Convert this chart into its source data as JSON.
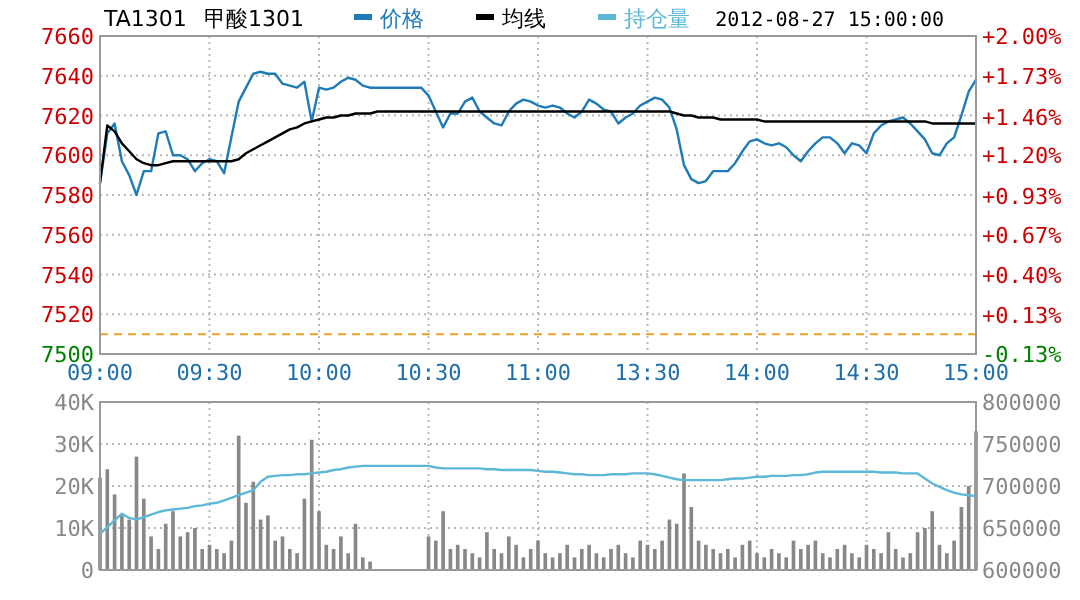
{
  "chart_data": [
    {
      "type": "line",
      "title": "TA1301",
      "subtitle": "甲酸1301",
      "annotations": [
        "2012-08-27 15:00:00"
      ],
      "categories": [
        "09:00",
        null,
        null,
        null,
        null,
        null,
        null,
        null,
        null,
        null,
        null,
        null,
        null,
        null,
        null,
        "09:30",
        null,
        null,
        null,
        null,
        null,
        null,
        null,
        null,
        null,
        null,
        null,
        null,
        null,
        null,
        "10:00",
        null,
        null,
        null,
        null,
        null,
        null,
        null,
        null,
        null,
        null,
        null,
        null,
        null,
        null,
        "10:30",
        null,
        null,
        null,
        null,
        null,
        null,
        null,
        null,
        null,
        null,
        null,
        null,
        null,
        null,
        "11:00",
        null,
        null,
        null,
        null,
        null,
        null,
        null,
        null,
        null,
        null,
        null,
        null,
        null,
        null,
        "13:30",
        null,
        null,
        null,
        null,
        null,
        null,
        null,
        null,
        null,
        null,
        null,
        null,
        null,
        null,
        "14:00",
        null,
        null,
        null,
        null,
        null,
        null,
        null,
        null,
        null,
        null,
        null,
        null,
        null,
        null,
        "14:30",
        null,
        null,
        null,
        null,
        null,
        null,
        null,
        null,
        null,
        null,
        null,
        null,
        null,
        null,
        "15:00"
      ],
      "ylim": [
        7500,
        7660
      ],
      "yticks": [
        7500,
        7520,
        7540,
        7560,
        7580,
        7600,
        7620,
        7640,
        7660
      ],
      "y2lim": [
        -0.13,
        2.0
      ],
      "y2ticks": [
        {
          "value": -0.13,
          "label": "-0.13%"
        },
        {
          "value": 0.13,
          "label": "+0.13%"
        },
        {
          "value": 0.4,
          "label": "+0.40%"
        },
        {
          "value": 0.67,
          "label": "+0.67%"
        },
        {
          "value": 0.93,
          "label": "+0.93%"
        },
        {
          "value": 1.2,
          "label": "+1.20%"
        },
        {
          "value": 1.46,
          "label": "+1.46%"
        },
        {
          "value": 1.73,
          "label": "+1.73%"
        },
        {
          "value": 2.0,
          "label": "+2.00%"
        }
      ],
      "ref_lines": [
        {
          "axis": "y",
          "value": 7510,
          "color": "#f0a030",
          "line_style": "dashed"
        }
      ],
      "grid": true,
      "legend": "top",
      "series": [
        {
          "name": "价格",
          "color": "#1f7bb6",
          "values": [
            7586,
            7611,
            7616,
            7597,
            7590,
            7580,
            7592,
            7592,
            7611,
            7612,
            7600,
            7600,
            7598,
            7592,
            7596,
            7598,
            7597,
            7591,
            7609,
            7627,
            7634,
            7641,
            7642,
            7641,
            7641,
            7636,
            7635,
            7634,
            7637,
            7617,
            7634,
            7633,
            7634,
            7637,
            7639,
            7638,
            7635,
            7634,
            7634,
            7634,
            7634,
            7634,
            7634,
            7634,
            7634,
            7630,
            7622,
            7614,
            7621,
            7621,
            7627,
            7629,
            7622,
            7619,
            7616,
            7615,
            7622,
            7626,
            7628,
            7627,
            7625,
            7624,
            7625,
            7624,
            7621,
            7619,
            7622,
            7628,
            7626,
            7623,
            7622,
            7616,
            7619,
            7621,
            7625,
            7627,
            7629,
            7628,
            7624,
            7613,
            7595,
            7588,
            7586,
            7587,
            7592,
            7592,
            7592,
            7596,
            7602,
            7607,
            7608,
            7606,
            7605,
            7606,
            7604,
            7600,
            7597,
            7602,
            7606,
            7609,
            7609,
            7606,
            7601,
            7606,
            7605,
            7601,
            7611,
            7615,
            7617,
            7618,
            7619,
            7616,
            7612,
            7608,
            7601,
            7600,
            7606,
            7609,
            7620,
            7632,
            7638
          ]
        },
        {
          "name": "均线",
          "color": "#000000",
          "values": [
            7586,
            7615,
            7612,
            7606,
            7602,
            7598,
            7596,
            7595,
            7595,
            7596,
            7597,
            7597,
            7597,
            7597,
            7597,
            7597,
            7597,
            7597,
            7597,
            7598,
            7601,
            7603,
            7605,
            7607,
            7609,
            7611,
            7613,
            7614,
            7616,
            7617,
            7618,
            7619,
            7619,
            7620,
            7620,
            7621,
            7621,
            7621,
            7622,
            7622,
            7622,
            7622,
            7622,
            7622,
            7622,
            7622,
            7622,
            7622,
            7622,
            7622,
            7622,
            7622,
            7622,
            7622,
            7622,
            7622,
            7622,
            7622,
            7622,
            7622,
            7622,
            7622,
            7622,
            7622,
            7622,
            7622,
            7622,
            7622,
            7622,
            7622,
            7622,
            7622,
            7622,
            7622,
            7622,
            7622,
            7622,
            7622,
            7622,
            7621,
            7620,
            7620,
            7619,
            7619,
            7619,
            7618,
            7618,
            7618,
            7618,
            7618,
            7618,
            7617,
            7617,
            7617,
            7617,
            7617,
            7617,
            7617,
            7617,
            7617,
            7617,
            7617,
            7617,
            7617,
            7617,
            7617,
            7617,
            7617,
            7617,
            7617,
            7617,
            7617,
            7617,
            7617,
            7616,
            7616,
            7616,
            7616,
            7616,
            7616,
            7616
          ]
        }
      ]
    },
    {
      "type": "bar",
      "categories": [
        null,
        null,
        null,
        null,
        null,
        null,
        null,
        null,
        null,
        null,
        null,
        null,
        null,
        null,
        null,
        null,
        null,
        null,
        null,
        null,
        null,
        null,
        null,
        null,
        null,
        null,
        null,
        null,
        null,
        null,
        null,
        null,
        null,
        null,
        null,
        null,
        null,
        null,
        null,
        null,
        null,
        null,
        null,
        null,
        null,
        null,
        null,
        null,
        null,
        null,
        null,
        null,
        null,
        null,
        null,
        null,
        null,
        null,
        null,
        null,
        null,
        null,
        null,
        null,
        null,
        null,
        null,
        null,
        null,
        null,
        null,
        null,
        null,
        null,
        null,
        null,
        null,
        null,
        null,
        null,
        null,
        null,
        null,
        null,
        null,
        null,
        null,
        null,
        null,
        null,
        null,
        null,
        null,
        null,
        null,
        null,
        null,
        null,
        null,
        null,
        null,
        null,
        null,
        null,
        null,
        null,
        null,
        null,
        null,
        null,
        null,
        null,
        null,
        null,
        null,
        null,
        null,
        null,
        null,
        null,
        null
      ],
      "ylim": [
        0,
        40000
      ],
      "yticks": [
        {
          "value": 0,
          "label": "0"
        },
        {
          "value": 10000,
          "label": "10K"
        },
        {
          "value": 20000,
          "label": "20K"
        },
        {
          "value": 30000,
          "label": "30K"
        },
        {
          "value": 40000,
          "label": "40K"
        }
      ],
      "y2lim": [
        600000,
        800000
      ],
      "y2ticks": [
        600000,
        650000,
        700000,
        750000,
        800000
      ],
      "grid": true,
      "tick_labels": "y",
      "legend": "top",
      "series": [
        {
          "color": "#888888",
          "values": [
            22000,
            24000,
            18000,
            13000,
            12000,
            27000,
            17000,
            8000,
            5000,
            11000,
            14000,
            8000,
            9000,
            10000,
            5000,
            6000,
            5000,
            4000,
            7000,
            32000,
            16000,
            21000,
            12000,
            13000,
            7000,
            8000,
            5000,
            4000,
            17000,
            31000,
            14000,
            6000,
            5000,
            8000,
            4000,
            11000,
            3000,
            2000,
            null,
            null,
            null,
            null,
            null,
            null,
            null,
            8000,
            7000,
            14000,
            5000,
            6000,
            5000,
            4000,
            3000,
            9000,
            5000,
            4000,
            8000,
            6000,
            3000,
            5000,
            7000,
            4000,
            3000,
            4000,
            6000,
            3000,
            5000,
            6000,
            4000,
            3000,
            5000,
            6000,
            4000,
            3000,
            7000,
            6000,
            5000,
            7000,
            12000,
            11000,
            23000,
            15000,
            7000,
            6000,
            5000,
            4000,
            5000,
            3000,
            6000,
            7000,
            4000,
            3000,
            5000,
            4000,
            3000,
            7000,
            5000,
            6000,
            7000,
            4000,
            3000,
            5000,
            6000,
            4000,
            3000,
            6000,
            5000,
            4000,
            9000,
            5000,
            3000,
            4000,
            9000,
            10000,
            14000,
            6000,
            4000,
            7000,
            15000,
            20000,
            33000
          ]
        },
        {
          "name": "持仓量",
          "color": "#5cb8d6",
          "type": "line",
          "axis": "y2",
          "values": [
            643000,
            651000,
            659000,
            667000,
            662000,
            660000,
            663000,
            666000,
            669000,
            671000,
            672000,
            673000,
            674000,
            676000,
            677000,
            679000,
            680000,
            683000,
            686000,
            689000,
            692000,
            695000,
            705000,
            711000,
            712000,
            713000,
            713000,
            714000,
            714000,
            715000,
            716000,
            717000,
            719000,
            720000,
            722000,
            723000,
            724000,
            724000,
            724000,
            724000,
            724000,
            724000,
            724000,
            724000,
            724000,
            724000,
            722000,
            721000,
            721000,
            721000,
            721000,
            721000,
            721000,
            720000,
            720000,
            719000,
            719000,
            719000,
            719000,
            719000,
            718000,
            717000,
            717000,
            716000,
            715000,
            714000,
            714000,
            713000,
            713000,
            713000,
            714000,
            714000,
            714000,
            715000,
            715000,
            715000,
            714000,
            712000,
            710000,
            708000,
            707000,
            707000,
            707000,
            707000,
            707000,
            707000,
            708000,
            709000,
            709000,
            710000,
            711000,
            711000,
            712000,
            712000,
            712000,
            713000,
            713000,
            714000,
            716000,
            717000,
            717000,
            717000,
            717000,
            717000,
            717000,
            717000,
            717000,
            716000,
            716000,
            716000,
            715000,
            715000,
            715000,
            709000,
            703000,
            699000,
            695000,
            692000,
            690000,
            689000,
            688000
          ]
        }
      ]
    }
  ]
}
